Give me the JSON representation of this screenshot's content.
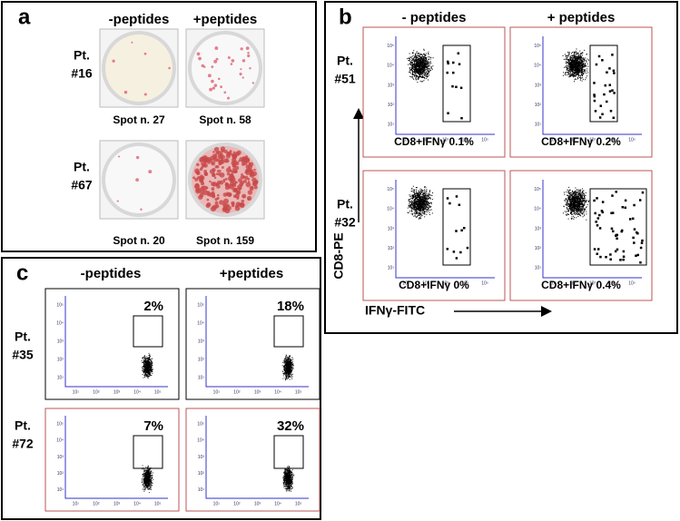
{
  "panel_a": {
    "label": "a",
    "columns": [
      "-peptides",
      "+peptides"
    ],
    "rows": [
      {
        "patient": [
          "Pt.",
          "#16"
        ],
        "spots": [
          "Spot n. 27",
          "Spot n. 58"
        ]
      },
      {
        "patient": [
          "Pt.",
          "#67"
        ],
        "spots": [
          "Spot n. 20",
          "Spot n. 159"
        ]
      }
    ]
  },
  "panel_b": {
    "label": "b",
    "columns": [
      "- peptides",
      "+ peptides"
    ],
    "rows": [
      {
        "patient": [
          "Pt.",
          "#51"
        ],
        "gates": [
          "CD8+IFNγ 0.1%",
          "CD8+IFNγ 0.2%"
        ]
      },
      {
        "patient": [
          "Pt.",
          "#32"
        ],
        "gates": [
          "CD8+IFNγ 0%",
          "CD8+IFNγ 0.4%"
        ]
      }
    ],
    "y_axis_label": "CD8-PE",
    "x_axis_label": "IFNγ-FITC"
  },
  "panel_c": {
    "label": "c",
    "columns": [
      "-peptides",
      "+peptides"
    ],
    "rows": [
      {
        "patient": [
          "Pt.",
          "#35"
        ],
        "gates": [
          "2%",
          "18%"
        ]
      },
      {
        "patient": [
          "Pt.",
          "#72"
        ],
        "gates": [
          "7%",
          "32%"
        ]
      }
    ]
  },
  "flow_ticks": [
    "10¹",
    "10²",
    "10³",
    "10⁴",
    "10⁵"
  ]
}
